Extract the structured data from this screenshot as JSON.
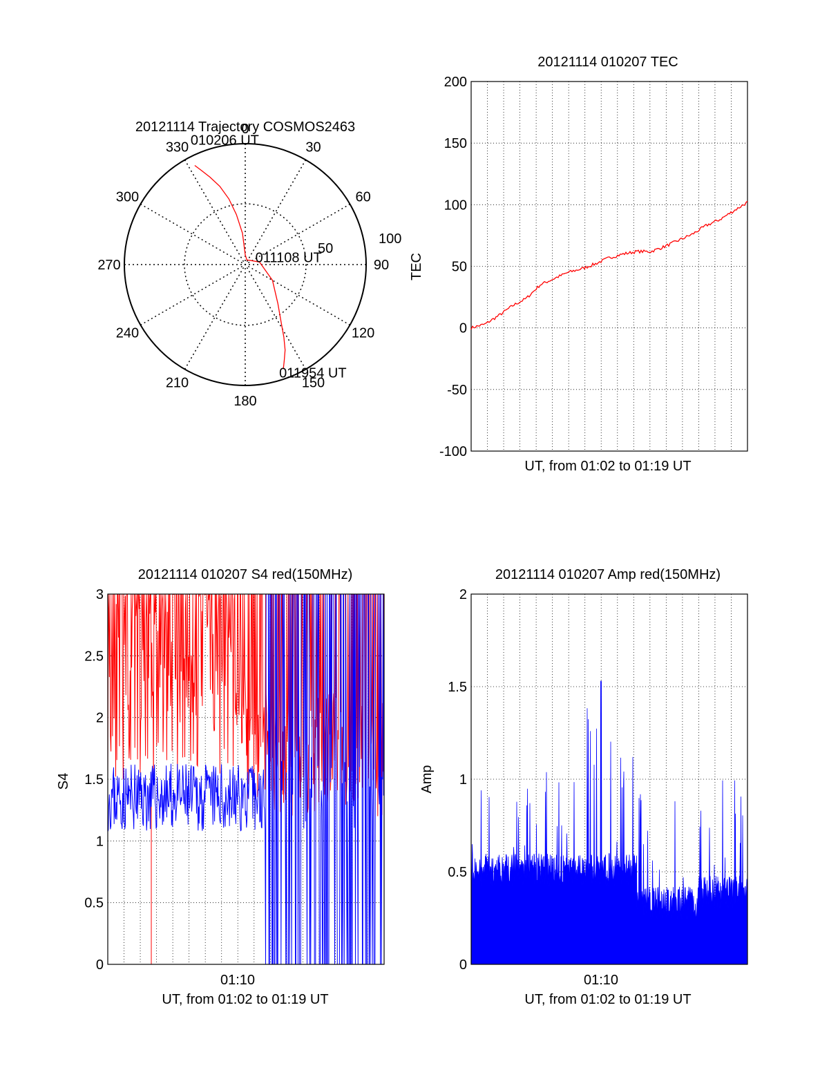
{
  "chart_data": [
    {
      "type": "polar",
      "title": "20121114 Trajectory COSMOS2463",
      "azimuth_labels": [
        "0",
        "30",
        "60",
        "90",
        "120",
        "150",
        "180",
        "210",
        "240",
        "270",
        "300",
        "330"
      ],
      "radial_labels": [
        "50",
        "100"
      ],
      "trajectory_color": "#ff0000",
      "trajectory": {
        "azimuth_deg": [
          -27,
          -25,
          -22,
          -18,
          -14,
          -10,
          -5,
          0,
          20,
          45,
          80,
          120,
          140,
          148,
          152,
          155,
          158,
          160
        ],
        "radius_frac": [
          0.92,
          0.86,
          0.78,
          0.68,
          0.56,
          0.42,
          0.26,
          0.08,
          0.04,
          0.05,
          0.12,
          0.26,
          0.42,
          0.56,
          0.68,
          0.78,
          0.86,
          0.92
        ]
      },
      "annotations": [
        {
          "text": "010206 UT",
          "azimuth_deg": -27,
          "radius_frac": 0.92
        },
        {
          "text": "011108 UT",
          "azimuth_deg": 80,
          "radius_frac": 0.12
        },
        {
          "text": "011954 UT",
          "azimuth_deg": 160,
          "radius_frac": 0.92
        }
      ]
    },
    {
      "type": "line",
      "title": "20121114 010207 TEC",
      "xlabel": "UT, from 01:02 to 01:19 UT",
      "ylabel": "TEC",
      "ylim": [
        -100,
        200
      ],
      "yticks": [
        -100,
        -50,
        0,
        50,
        100,
        150,
        200
      ],
      "grid": true,
      "series": [
        {
          "color": "#ff0000",
          "x": [
            0,
            0.05,
            0.1,
            0.15,
            0.2,
            0.25,
            0.3,
            0.35,
            0.4,
            0.45,
            0.5,
            0.55,
            0.6,
            0.65,
            0.7,
            0.75,
            0.8,
            0.85,
            0.9,
            0.95,
            1.0
          ],
          "values": [
            0,
            3,
            10,
            18,
            24,
            35,
            40,
            45,
            48,
            52,
            57,
            60,
            62,
            62,
            66,
            71,
            76,
            83,
            88,
            95,
            102
          ]
        }
      ]
    },
    {
      "type": "line",
      "title": "20121114 010207 S4 red(150MHz)",
      "xlabel": "UT, from 01:02 to 01:19 UT",
      "ylabel": "S4",
      "ylim": [
        0,
        3
      ],
      "yticks": [
        "0",
        "0.5",
        "1",
        "1.5",
        "2",
        "2.5",
        "3"
      ],
      "xtick_label": "01:10",
      "grid": true,
      "series": [
        {
          "color": "#ff0000",
          "style": "noisy",
          "level": 2.4,
          "spread": 0.6
        },
        {
          "color": "#0000ff",
          "style": "noisy",
          "level": 1.35,
          "spread": 0.25
        }
      ]
    },
    {
      "type": "area",
      "title": "20121114 010207 Amp red(150MHz)",
      "xlabel": "UT, from 01:02 to 01:19 UT",
      "ylabel": "Amp",
      "ylim": [
        0,
        2
      ],
      "yticks": [
        "0",
        "0.5",
        "1",
        "1.5",
        "2"
      ],
      "xtick_label": "01:10",
      "grid": true,
      "series": [
        {
          "color": "#0000ff",
          "style": "spiky",
          "peak": 1.53
        }
      ]
    }
  ]
}
